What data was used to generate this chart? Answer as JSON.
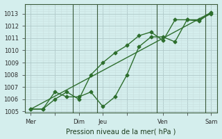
{
  "title": "",
  "xlabel": "Pression niveau de la mer( hPa )",
  "ylabel": "",
  "bg_color": "#d4eeed",
  "line_color": "#2d6e2d",
  "grid_color_major": "#b0c8c8",
  "grid_color_minor": "#c8dede",
  "ylim": [
    1005,
    1013.5
  ],
  "yticks": [
    1005,
    1006,
    1007,
    1008,
    1009,
    1010,
    1011,
    1012,
    1013
  ],
  "xtick_labels": [
    "Mer",
    "",
    "Dim",
    "Jeu",
    "",
    "Ven",
    "",
    "Sam"
  ],
  "xtick_positions": [
    0,
    2,
    4,
    6,
    8,
    11,
    13,
    15
  ],
  "series1": {
    "x": [
      0,
      1,
      2,
      3,
      4,
      5,
      6,
      7,
      8,
      9,
      10,
      11,
      12,
      13,
      14,
      15
    ],
    "y": [
      1005.2,
      1005.2,
      1006.6,
      1006.2,
      1006.2,
      1006.6,
      1005.4,
      1006.2,
      1008.0,
      1010.3,
      1011.1,
      1011.1,
      1010.7,
      1012.5,
      1012.5,
      1013.0
    ]
  },
  "series2": {
    "x": [
      0,
      1,
      2,
      3,
      4,
      5,
      6,
      7,
      8,
      9,
      10,
      11,
      12,
      13,
      14,
      15
    ],
    "y": [
      1005.2,
      1005.2,
      1006.0,
      1006.6,
      1006.0,
      1008.0,
      1009.0,
      1009.8,
      1010.4,
      1011.2,
      1011.5,
      1010.8,
      1012.5,
      1012.5,
      1012.4,
      1013.1
    ]
  },
  "series3": {
    "x": [
      0,
      15
    ],
    "y": [
      1005.2,
      1013.1
    ]
  },
  "lw": 1.0,
  "markersize": 2.5
}
